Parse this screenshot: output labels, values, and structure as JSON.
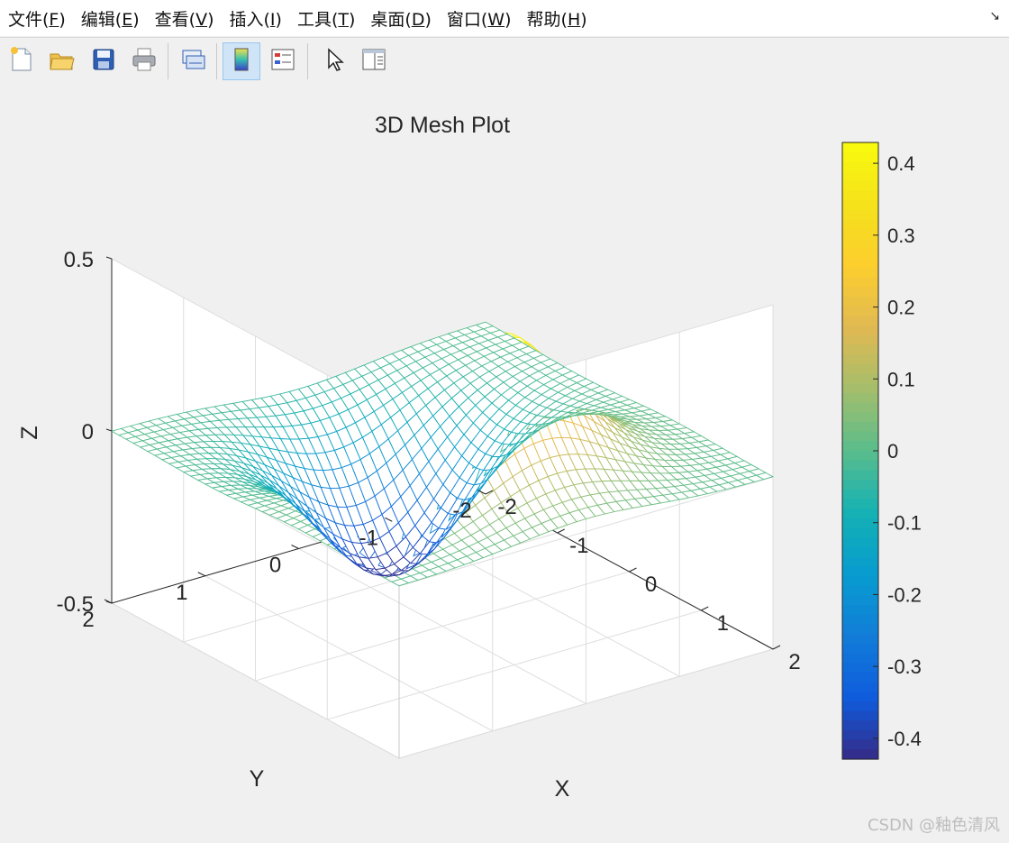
{
  "menu": [
    {
      "pre": "文件(",
      "key": "F",
      "post": ")"
    },
    {
      "pre": "编辑(",
      "key": "E",
      "post": ")"
    },
    {
      "pre": "查看(",
      "key": "V",
      "post": ")"
    },
    {
      "pre": "插入(",
      "key": "I",
      "post": ")"
    },
    {
      "pre": "工具(",
      "key": "T",
      "post": ")"
    },
    {
      "pre": "桌面(",
      "key": "D",
      "post": ")"
    },
    {
      "pre": "窗口(",
      "key": "W",
      "post": ")"
    },
    {
      "pre": "帮助(",
      "key": "H",
      "post": ")"
    }
  ],
  "toolbar": {
    "buttons": [
      "new-figure-icon",
      "open-file-icon",
      "save-icon",
      "print-icon",
      "link-plot-icon",
      "insert-colorbar-icon",
      "insert-legend-icon",
      "edit-plot-icon",
      "property-inspector-icon"
    ],
    "active": "insert-colorbar-icon"
  },
  "chart_data": {
    "type": "mesh",
    "title": "3D Mesh Plot",
    "xlabel": "X",
    "ylabel": "Y",
    "zlabel": "Z",
    "function": "z = x * exp(-x^2 - y^2)",
    "x_range": [
      -2,
      2
    ],
    "y_range": [
      -2,
      2
    ],
    "grid_points": 41,
    "xticks": [
      "-2",
      "-1",
      "0",
      "1",
      "2"
    ],
    "yticks": [
      "-2",
      "-1",
      "0",
      "1",
      "2"
    ],
    "zticks": [
      "-0.5",
      "0",
      "0.5"
    ],
    "zlim": [
      -0.5,
      0.5
    ],
    "colormap": "parula",
    "colorbar": {
      "range": [
        -0.429,
        0.429
      ],
      "ticks": [
        "-0.4",
        "-0.3",
        "-0.2",
        "-0.1",
        "0",
        "0.1",
        "0.2",
        "0.3",
        "0.4"
      ],
      "location": "right"
    },
    "grid": true
  },
  "watermark": "CSDN @釉色清风"
}
